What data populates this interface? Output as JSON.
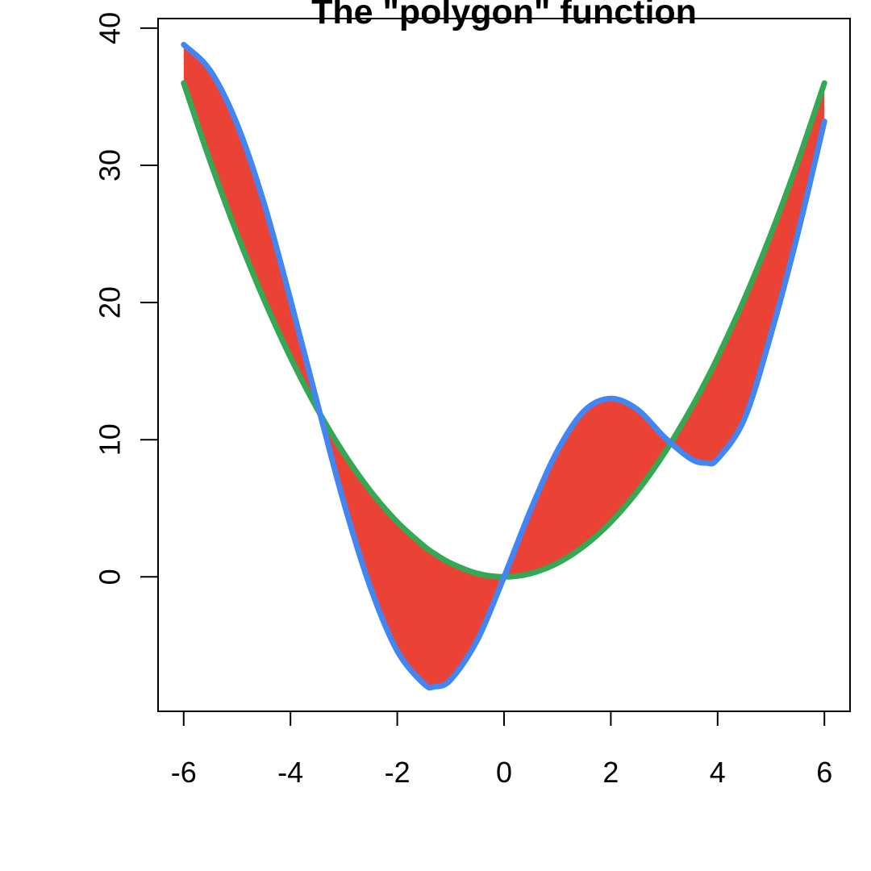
{
  "chart_data": {
    "type": "line",
    "title": "The \"polygon\" function",
    "xlabel": "",
    "ylabel": "",
    "xlim": [
      -6.48,
      6.48
    ],
    "ylim": [
      -9.8,
      40.7
    ],
    "x_ticks": [
      -6,
      -4,
      -2,
      0,
      2,
      4,
      6
    ],
    "x_tick_labels": [
      "-6",
      "-4",
      "-2",
      "0",
      "2",
      "4",
      "6"
    ],
    "y_ticks": [
      0,
      10,
      20,
      30,
      40
    ],
    "y_tick_labels": [
      "0",
      "10",
      "20",
      "30",
      "40"
    ],
    "grid": false,
    "legend": "none",
    "x": [
      -6,
      -5.5,
      -5,
      -4.5,
      -4,
      -3.5,
      -3,
      -2.5,
      -2,
      -1.5,
      -1.3,
      -1,
      -0.5,
      0,
      0.5,
      1,
      1.5,
      2,
      2.5,
      3,
      3.5,
      3.8,
      4,
      4.5,
      5,
      5.5,
      6
    ],
    "series": [
      {
        "color": "#4285F4",
        "values": [
          38.8,
          36.9,
          33.0,
          27.3,
          20.2,
          12.7,
          5.4,
          -0.8,
          -5.4,
          -7.8,
          -8.0,
          -7.5,
          -4.6,
          0.0,
          4.9,
          9.2,
          12.1,
          13.0,
          12.2,
          10.2,
          8.6,
          8.3,
          8.6,
          11.5,
          17.7,
          25.0,
          33.2
        ]
      },
      {
        "color": "#34A853",
        "values": [
          36.0,
          30.25,
          25.0,
          20.25,
          16.0,
          12.25,
          9.0,
          6.25,
          4.0,
          2.25,
          1.69,
          1.0,
          0.25,
          0.0,
          0.25,
          1.0,
          2.25,
          4.0,
          6.25,
          9.0,
          12.25,
          14.44,
          16.0,
          20.25,
          25.0,
          30.25,
          36.0
        ]
      }
    ],
    "fill_between_color": "#EA4335"
  }
}
